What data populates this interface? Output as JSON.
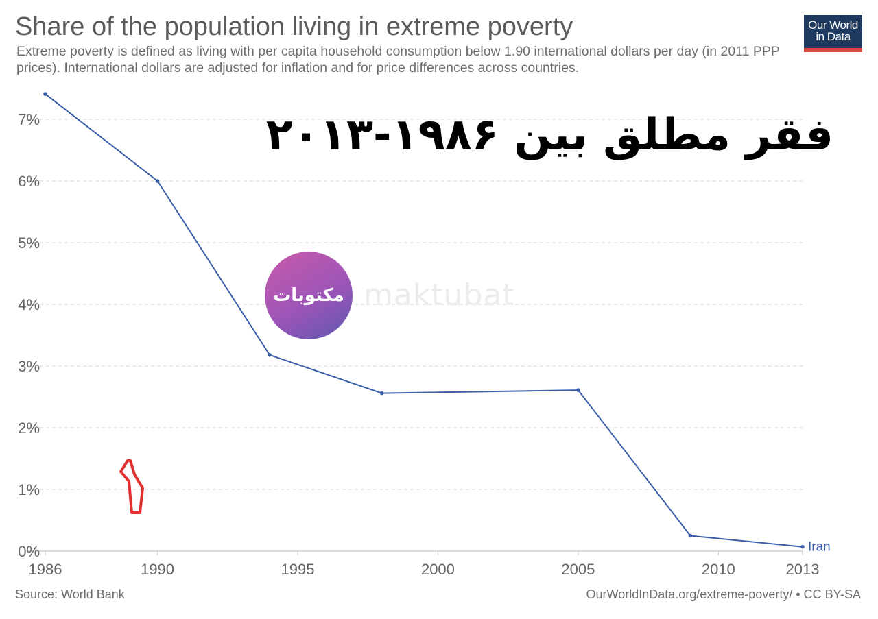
{
  "header": {
    "title": "Share of the population living in extreme poverty",
    "subtitle": "Extreme poverty is defined as living with per capita household consumption below 1.90 international dollars per day (in 2011 PPP prices). International dollars are adjusted for inflation and for price differences across countries.",
    "logo_line1": "Our World",
    "logo_line2": "in Data"
  },
  "overlay": {
    "persian_title": "فقر مطلق بین ۱۹۸۶-۲۰۱۳",
    "badge_text": "مکتوبات",
    "watermark": "maktubat",
    "annotation_number": "۱"
  },
  "footer": {
    "source": "Source: World Bank",
    "url": "OurWorldInData.org/extreme-poverty/ • CC BY-SA"
  },
  "colors": {
    "line": "#3b5ea8",
    "grid": "#dddddd",
    "axis_text": "#666666",
    "annotation": "#e03030"
  },
  "chart_data": {
    "type": "line",
    "title": "Share of the population living in extreme poverty",
    "xlabel": "",
    "ylabel": "",
    "x_ticks": [
      1986,
      1990,
      1995,
      2000,
      2005,
      2010,
      2013
    ],
    "y_ticks": [
      0,
      1,
      2,
      3,
      4,
      5,
      6,
      7
    ],
    "y_tick_labels": [
      "0%",
      "1%",
      "2%",
      "3%",
      "4%",
      "5%",
      "6%",
      "7%"
    ],
    "xlim": [
      1986,
      2013
    ],
    "ylim": [
      0,
      7.4
    ],
    "grid": true,
    "series": [
      {
        "name": "Iran",
        "x": [
          1986,
          1990,
          1994,
          1998,
          2005,
          2009,
          2013
        ],
        "y": [
          7.41,
          6.0,
          3.18,
          2.56,
          2.61,
          0.25,
          0.07
        ]
      }
    ]
  }
}
